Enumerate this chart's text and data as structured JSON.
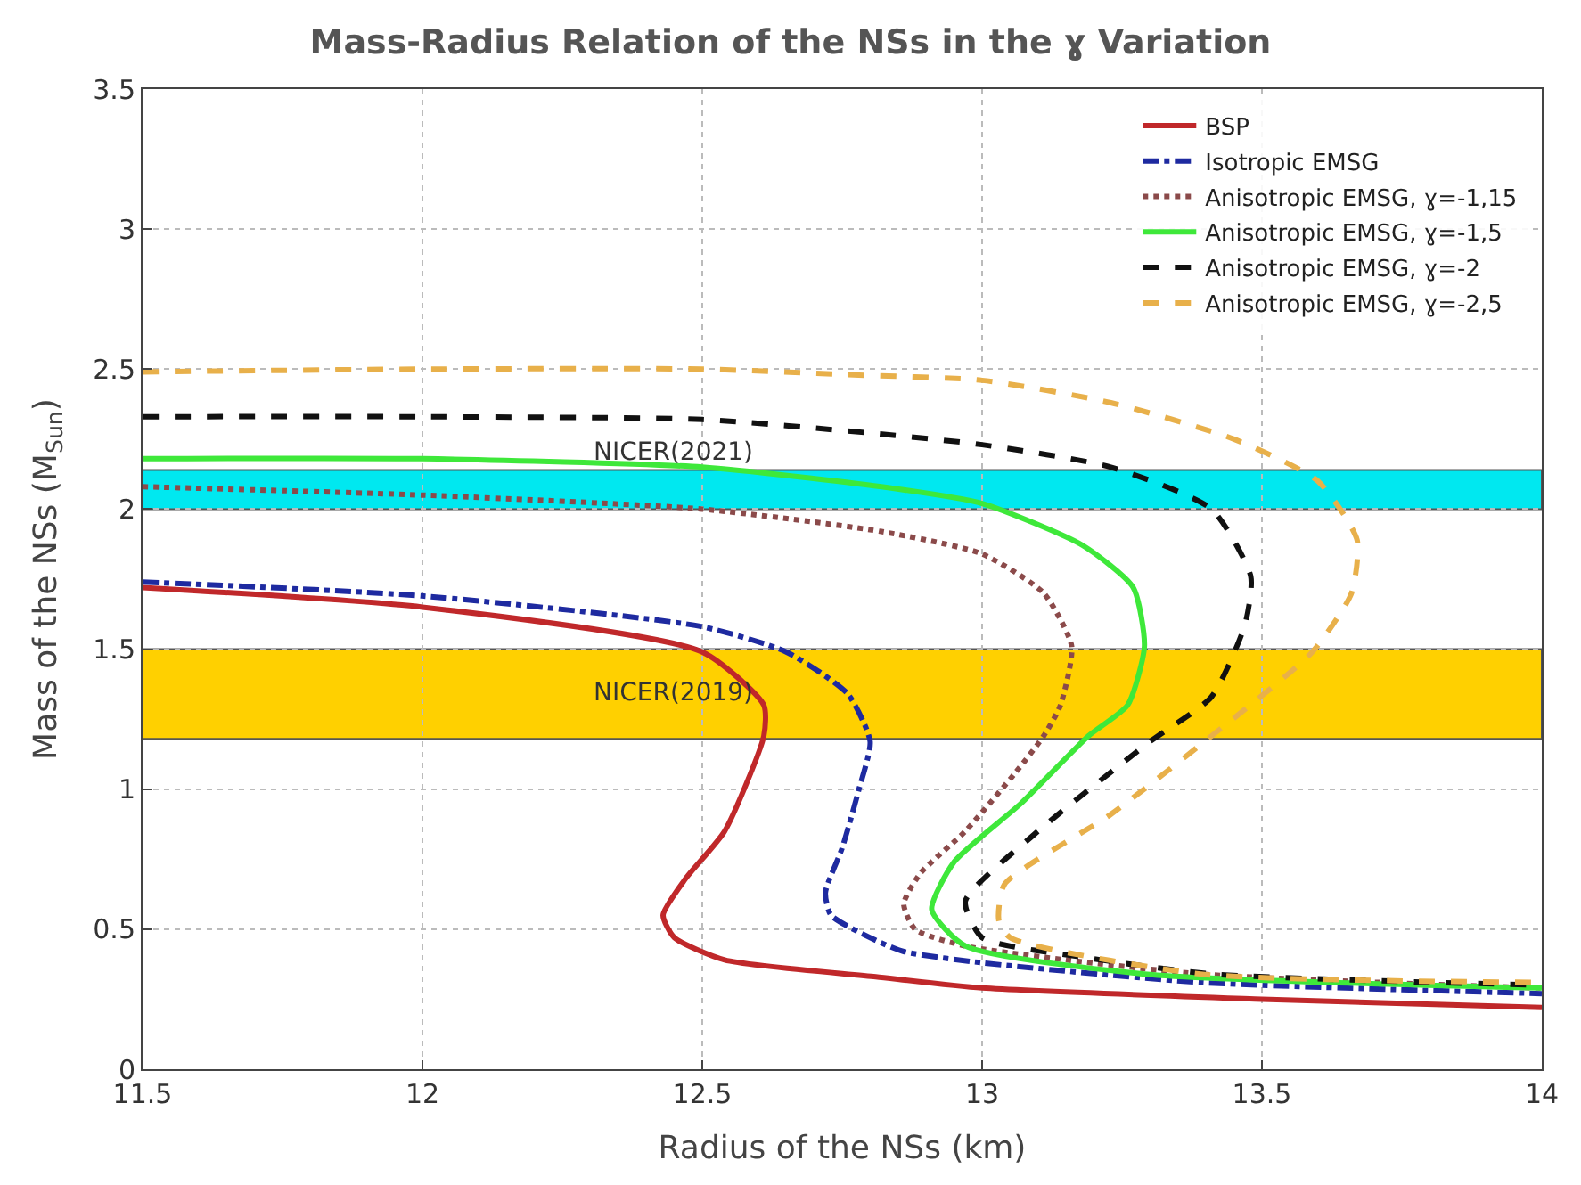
{
  "chart_data": {
    "type": "line",
    "title": "Mass-Radius Relation of the NSs in the ɣ Variation",
    "xlabel": "Radius of the NSs (km)",
    "ylabel": "Mass of the NSs (M$_{Sun}$)",
    "xlim": [
      11.5,
      14
    ],
    "xticks": [
      11.5,
      12,
      12.5,
      13,
      13.5,
      14
    ],
    "ylim": [
      0,
      3.5
    ],
    "yticks": [
      0,
      0.5,
      1,
      1.5,
      2,
      2.5,
      3,
      3.5
    ],
    "grid": true,
    "legend": "top right",
    "marker": "none",
    "bands": [
      {
        "axis": "y",
        "from": 2.0,
        "to": 2.14,
        "label": "NICER(2021)",
        "color": "#00e8f0"
      },
      {
        "axis": "y",
        "from": 1.18,
        "to": 1.5,
        "label": "NICER(2019)",
        "color": "#ffd000"
      }
    ],
    "series": [
      {
        "name": "BSP",
        "color": "#c0282a",
        "line_style": "solid",
        "x": [
          11.5,
          12.0,
          12.5,
          12.61,
          12.61,
          12.54,
          12.47,
          12.43,
          12.45,
          12.54,
          12.81,
          13.0,
          13.5,
          14.0
        ],
        "values": [
          1.72,
          1.65,
          1.49,
          1.3,
          1.19,
          0.85,
          0.68,
          0.55,
          0.47,
          0.39,
          0.33,
          0.29,
          0.25,
          0.22
        ]
      },
      {
        "name": "Isotropic EMSG",
        "color": "#1e2aa0",
        "line_style": "dashdot",
        "x": [
          11.5,
          12.0,
          12.5,
          12.65,
          12.76,
          12.8,
          12.78,
          12.75,
          12.72,
          12.73,
          12.81,
          12.86,
          13.0,
          13.39,
          14.0
        ],
        "values": [
          1.74,
          1.69,
          1.58,
          1.49,
          1.34,
          1.17,
          1.0,
          0.79,
          0.63,
          0.55,
          0.46,
          0.42,
          0.38,
          0.31,
          0.27
        ]
      },
      {
        "name": "Anisotropic EMSG, ɣ=-1,15",
        "color": "#8b4a4a",
        "line_style": "dotted",
        "x": [
          11.5,
          12.0,
          12.5,
          12.82,
          13.0,
          13.11,
          13.16,
          13.14,
          13.11,
          13.06,
          12.97,
          12.89,
          12.86,
          12.88,
          12.97,
          13.39,
          14.0
        ],
        "values": [
          2.08,
          2.05,
          2.0,
          1.92,
          1.84,
          1.7,
          1.51,
          1.3,
          1.19,
          1.06,
          0.85,
          0.7,
          0.59,
          0.5,
          0.44,
          0.34,
          0.29
        ]
      },
      {
        "name": "Anisotropic EMSG, ɣ=-1,5",
        "color": "#3ee83a",
        "line_style": "solid",
        "x": [
          11.5,
          12.0,
          12.5,
          12.82,
          13.0,
          13.18,
          13.27,
          13.29,
          13.26,
          13.19,
          13.07,
          12.95,
          12.91,
          12.97,
          13.29,
          14.0
        ],
        "values": [
          2.18,
          2.18,
          2.15,
          2.08,
          2.02,
          1.87,
          1.72,
          1.51,
          1.3,
          1.19,
          0.95,
          0.74,
          0.57,
          0.44,
          0.34,
          0.29
        ]
      },
      {
        "name": "Anisotropic EMSG, ɣ=-2",
        "color": "#111111",
        "line_style": "dashed",
        "x": [
          11.5,
          12.0,
          12.5,
          12.81,
          13.0,
          13.23,
          13.41,
          13.48,
          13.47,
          13.41,
          13.3,
          13.1,
          12.97,
          13.0,
          13.18,
          13.41,
          14.0
        ],
        "values": [
          2.33,
          2.33,
          2.32,
          2.27,
          2.23,
          2.15,
          2.0,
          1.76,
          1.59,
          1.33,
          1.17,
          0.85,
          0.6,
          0.47,
          0.4,
          0.34,
          0.3
        ]
      },
      {
        "name": "Anisotropic EMSG, ɣ=-2,5",
        "color": "#e8b04a",
        "line_style": "dashed",
        "x": [
          11.5,
          12.0,
          12.5,
          12.76,
          13.0,
          13.23,
          13.45,
          13.6,
          13.67,
          13.66,
          13.59,
          13.41,
          13.23,
          13.04,
          13.03,
          13.05,
          13.39,
          14.0
        ],
        "values": [
          2.49,
          2.5,
          2.5,
          2.48,
          2.46,
          2.38,
          2.25,
          2.1,
          1.89,
          1.7,
          1.49,
          1.19,
          0.91,
          0.66,
          0.53,
          0.47,
          0.34,
          0.31
        ]
      }
    ]
  }
}
